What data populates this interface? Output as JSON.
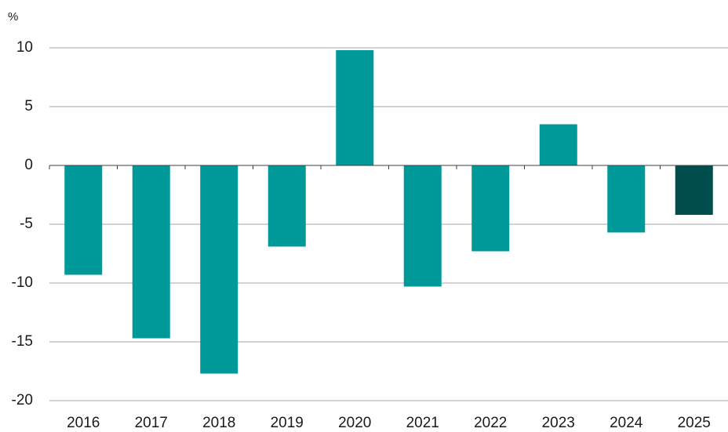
{
  "chart_data": {
    "type": "bar",
    "unit_label": "%",
    "categories": [
      "2016",
      "2017",
      "2018",
      "2019",
      "2020",
      "2021",
      "2022",
      "2023",
      "2024",
      "2025"
    ],
    "values": [
      -9.3,
      -14.7,
      -17.7,
      -6.9,
      9.8,
      -10.3,
      -7.3,
      3.5,
      -5.7,
      -4.2
    ],
    "colors": [
      "#009999",
      "#009999",
      "#009999",
      "#009999",
      "#009999",
      "#009999",
      "#009999",
      "#009999",
      "#009999",
      "#004d4d"
    ],
    "ylim": [
      -20,
      10
    ],
    "yticks": [
      -20,
      -15,
      -10,
      -5,
      0,
      5,
      10
    ],
    "grid": true
  }
}
